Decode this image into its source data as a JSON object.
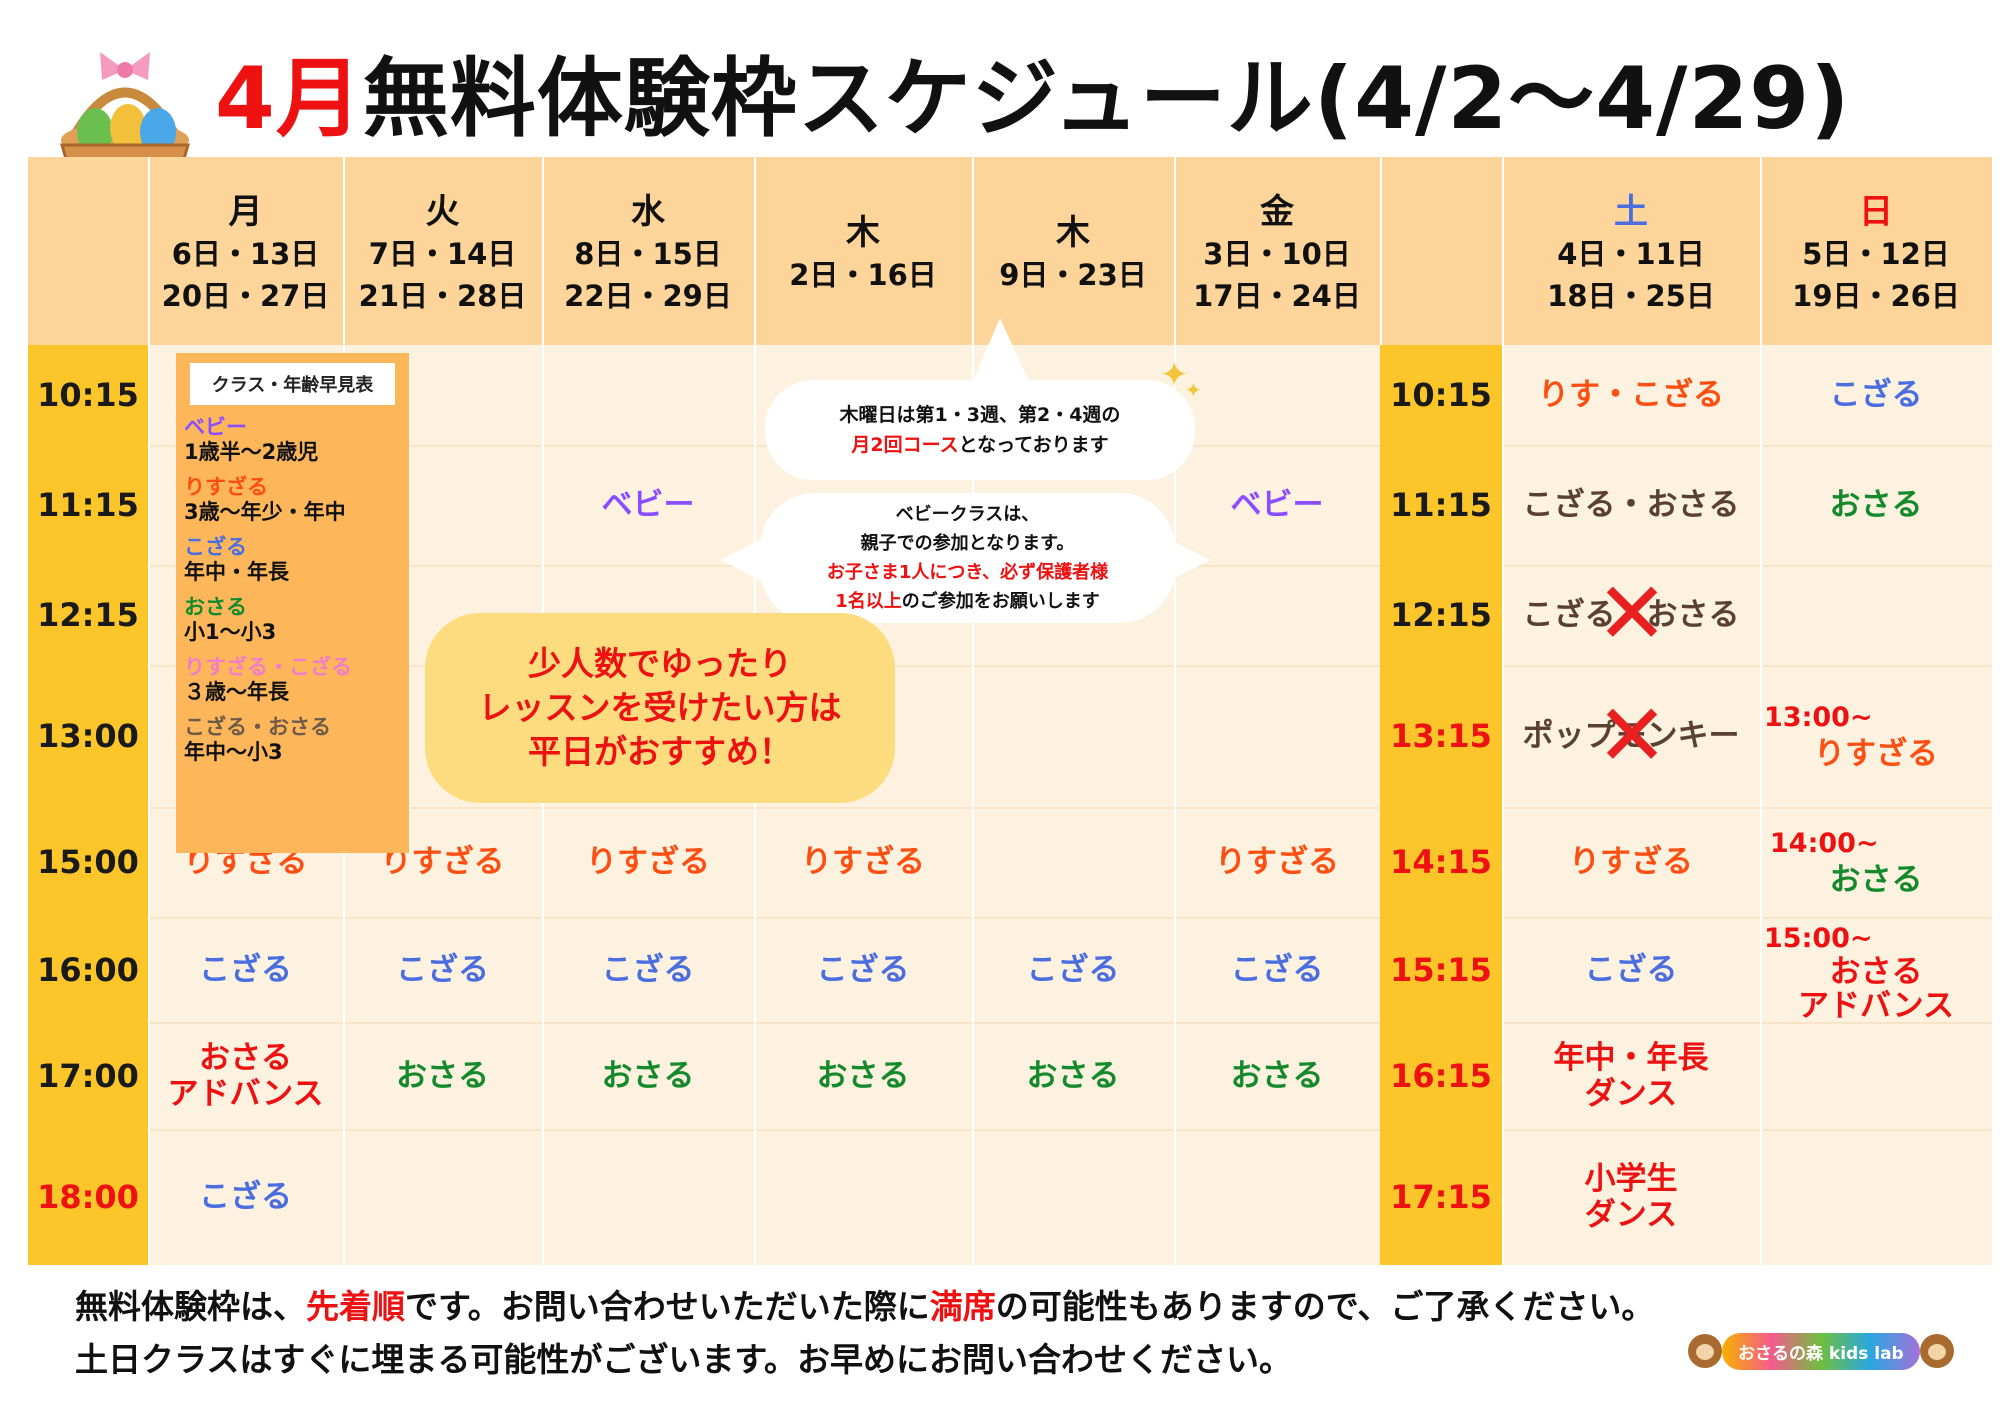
{
  "title": {
    "month": "4月",
    "rest": "無料体験枠スケジュール(4/2〜4/29)"
  },
  "colors": {
    "header": "#fdd49a",
    "time_column": "#fcc52a",
    "body": "#fdf1df",
    "accent_red": "#ee1111"
  },
  "header": {
    "days": [
      {
        "day": "月",
        "dates1": "6日・13日",
        "dates2": "20日・27日"
      },
      {
        "day": "火",
        "dates1": "7日・14日",
        "dates2": "21日・28日"
      },
      {
        "day": "水",
        "dates1": "8日・15日",
        "dates2": "22日・29日"
      },
      {
        "day": "木",
        "dates1": "2日・16日"
      },
      {
        "day": "木",
        "dates1": "9日・23日"
      },
      {
        "day": "金",
        "dates1": "3日・10日",
        "dates2": "17日・24日"
      },
      {
        "day": "土",
        "dates1": "4日・11日",
        "dates2": "18日・25日"
      },
      {
        "day": "日",
        "dates1": "5日・12日",
        "dates2": "19日・26日"
      }
    ]
  },
  "weekday_times": [
    "10:15",
    "11:15",
    "12:15",
    "13:00",
    "15:00",
    "16:00",
    "17:00",
    "18:00"
  ],
  "weekend_times": [
    "10:15",
    "11:15",
    "12:15",
    "13:15",
    "14:15",
    "15:15",
    "16:15",
    "17:15"
  ],
  "age_chart": {
    "title": "クラス・年齢早見表",
    "items": [
      {
        "name": "ベビー",
        "age": "1歳半〜2歳児"
      },
      {
        "name": "りすざる",
        "age": "3歳〜年少・年中"
      },
      {
        "name": "こざる",
        "age": "年中・年長"
      },
      {
        "name": "おさる",
        "age": "小1〜小3"
      },
      {
        "name": "りすざる・こざる",
        "age": "３歳〜年長"
      },
      {
        "name": "こざる・おさる",
        "age": "年中〜小3"
      }
    ]
  },
  "notes": {
    "thursday_line1": "木曜日は第1・3週、第2・4週の",
    "thursday_red": "月2回コース",
    "thursday_rest": "となっております",
    "baby_line1": "ベビークラスは、",
    "baby_line2": "親子での参加となります。",
    "baby_red": "お子さま1人につき、必ず保護者様",
    "baby_red2": "1名以上",
    "baby_rest": "のご参加をお願いします"
  },
  "promo": [
    "少人数でゆったり",
    "レッスンを受けたい方は",
    "平日がおすすめ！"
  ],
  "classes": {
    "wed_1115": "ベビー",
    "fri_1115": "ベビー",
    "r1500": [
      "りすざる",
      "りすざる",
      "りすざる",
      "りすざる",
      "りすざる"
    ],
    "r1600": [
      "こざる",
      "こざる",
      "こざる",
      "こざる",
      "こざる",
      "こざる"
    ],
    "mon_1700a": "おさる",
    "mon_1700b": "アドバンス",
    "r1700": [
      "おさる",
      "おさる",
      "おさる",
      "おさる",
      "おさる"
    ],
    "mon_1800": "こざる",
    "sat": {
      "s1015": "りす・こざる",
      "s1115": "こざる・おさる",
      "s1215": "こざる・おさる",
      "s1315": "ポップモンキー",
      "s1415": "りすざる",
      "s1515": "こざる",
      "s1615a": "年中・年長",
      "s1615b": "ダンス",
      "s1715a": "小学生",
      "s1715b": "ダンス"
    },
    "sun": {
      "s1015": "こざる",
      "s1115": "おさる",
      "t1300": "13:00~",
      "s1300": "りすざる",
      "t1400": "14:00~",
      "s1400": "おさる",
      "t1500": "15:00~",
      "s1500a": "おさる",
      "s1500b": "アドバンス"
    }
  },
  "footer": {
    "l1a": "無料体験枠は、",
    "l1b": "先着順",
    "l1c": "です。お問い合わせいただいた際に",
    "l1d": "満席",
    "l1e": "の可能性もありますので、ご了承ください。",
    "l2": "土日クラスはすぐに埋まる可能性がございます。お早めにお問い合わせください。"
  },
  "logo": "おさるの森 kids lab"
}
